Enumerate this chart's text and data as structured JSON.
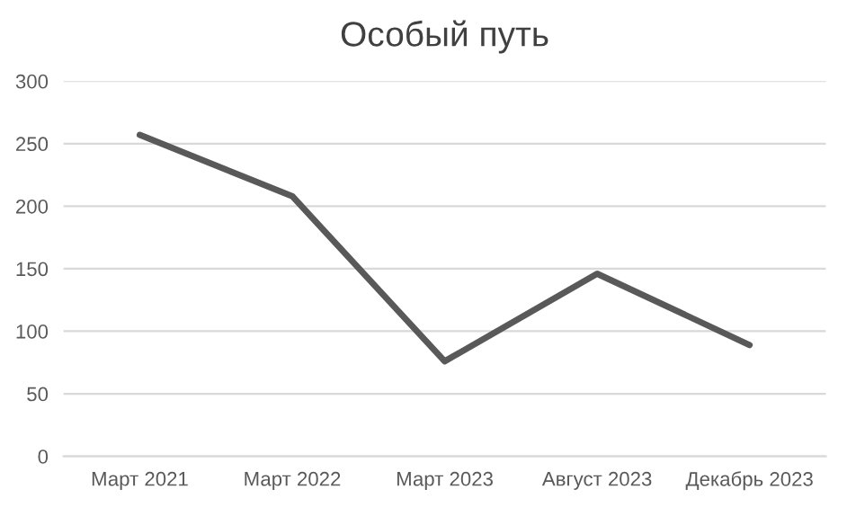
{
  "chart_data": {
    "type": "line",
    "title": "Особый путь",
    "categories": [
      "Март 2021",
      "Март 2022",
      "Март 2023",
      "Август 2023",
      "Декабрь 2023"
    ],
    "series": [
      {
        "color": "#595959",
        "values": [
          257,
          208,
          76,
          146,
          89
        ]
      }
    ],
    "ylim": [
      0,
      300
    ],
    "yticks": [
      0,
      50,
      100,
      150,
      200,
      250,
      300
    ],
    "grid": "y",
    "marker": "none",
    "line_style": "solid"
  }
}
